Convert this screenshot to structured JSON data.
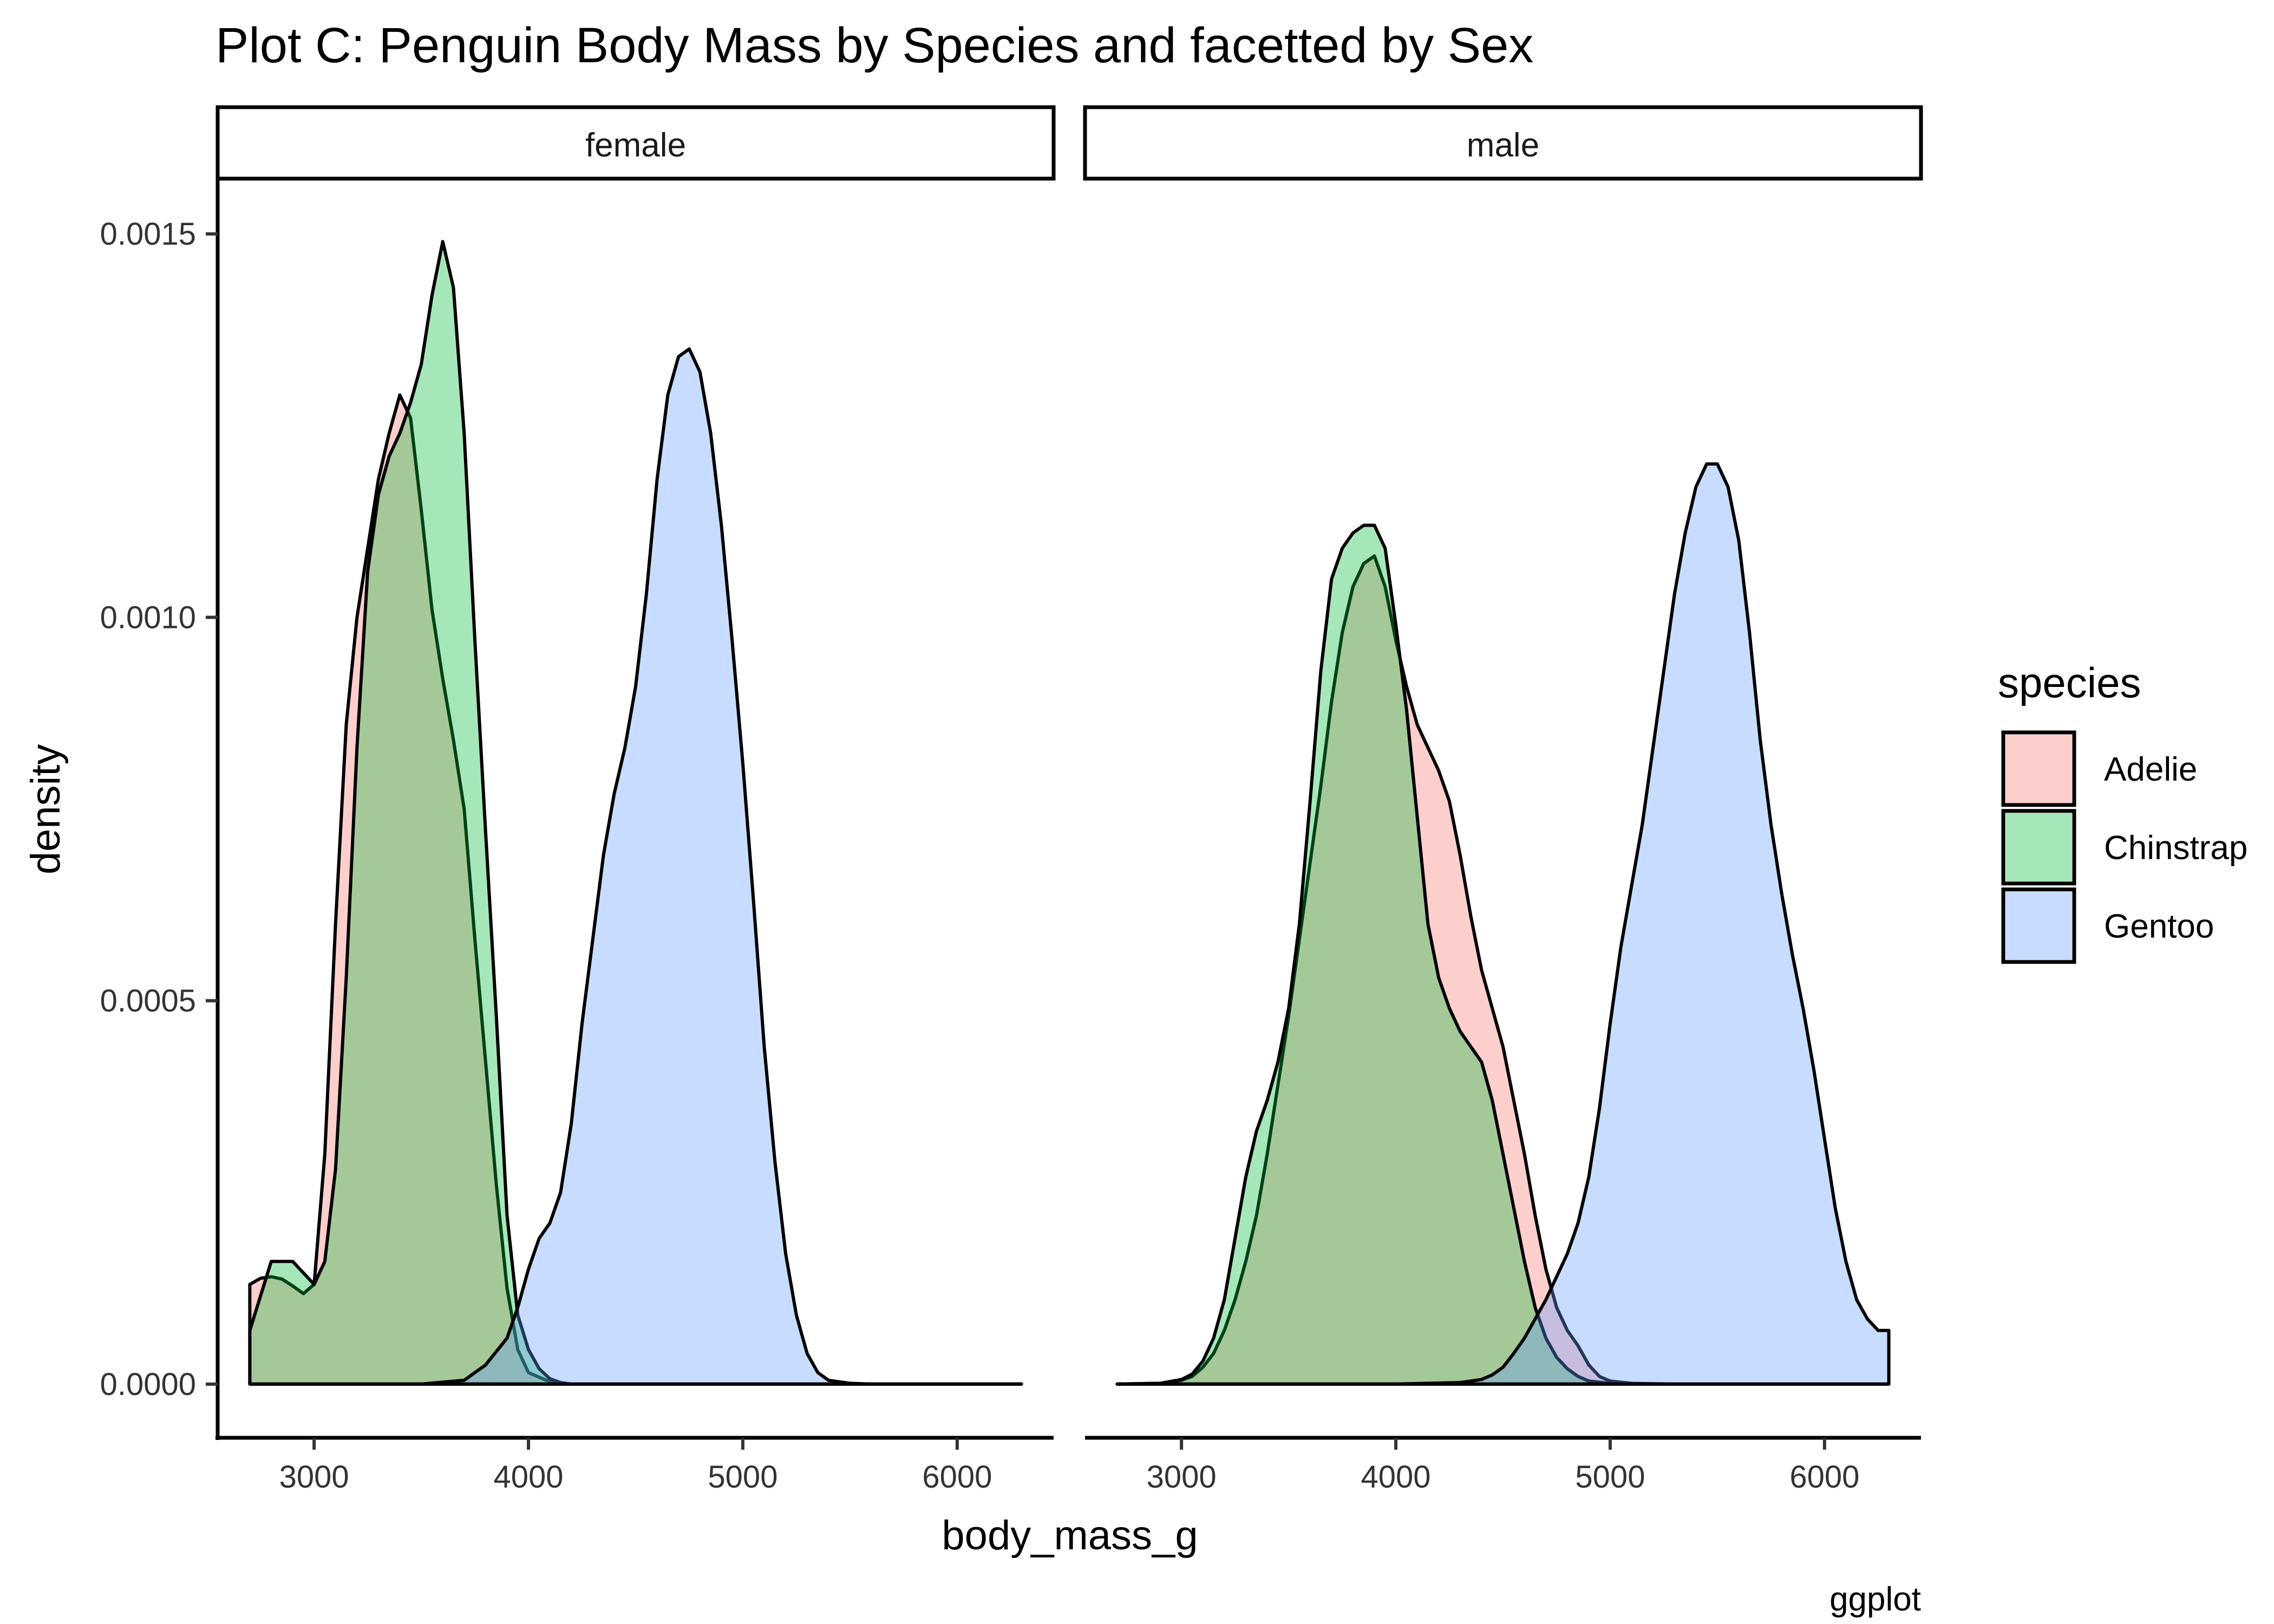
{
  "chart_data": {
    "type": "area",
    "title": "Plot C: Penguin Body Mass by Species and facetted by Sex",
    "xlabel": "body_mass_g",
    "ylabel": "density",
    "caption": "ggplot",
    "xlim": [
      2550,
      6450
    ],
    "ylim": [
      -7e-05,
      0.00157
    ],
    "x_ticks": [
      3000,
      4000,
      5000,
      6000
    ],
    "x_tick_labels": [
      "3000",
      "4000",
      "5000",
      "6000"
    ],
    "y_ticks": [
      0.0,
      0.0005,
      0.001,
      0.0015
    ],
    "y_tick_labels": [
      "0.0000",
      "0.0005",
      "0.0010",
      "0.0015"
    ],
    "grid": false,
    "legend": {
      "title": "species",
      "position": "right",
      "items": [
        "Adelie",
        "Chinstrap",
        "Gentoo"
      ]
    },
    "colors": {
      "Adelie": "#F8766D",
      "Chinstrap": "#00BA38",
      "Gentoo": "#619CFF"
    },
    "fill_opacity": 0.35,
    "facets": [
      {
        "label": "female",
        "series": [
          {
            "name": "Adelie",
            "x": [
              2700,
              2750,
              2800,
              2850,
              2900,
              2950,
              3000,
              3050,
              3100,
              3150,
              3200,
              3250,
              3300,
              3350,
              3400,
              3450,
              3500,
              3550,
              3600,
              3650,
              3700,
              3750,
              3800,
              3850,
              3900,
              3950,
              4000,
              4100,
              4200,
              4300,
              4500,
              5000,
              5500,
              6000,
              6300
            ],
            "values": [
              0.00013,
              0.000138,
              0.00014,
              0.000137,
              0.000128,
              0.000118,
              0.00013,
              0.0003,
              0.0006,
              0.00086,
              0.001,
              0.00109,
              0.00118,
              0.00124,
              0.00129,
              0.00126,
              0.00114,
              0.00101,
              0.00092,
              0.00084,
              0.00075,
              0.00058,
              0.00042,
              0.00026,
              0.000125,
              4.5e-05,
              1.5e-05,
              3e-06,
              0,
              0,
              0,
              0,
              0,
              0,
              0
            ]
          },
          {
            "name": "Chinstrap",
            "x": [
              2700,
              2800,
              2900,
              3000,
              3050,
              3100,
              3150,
              3200,
              3250,
              3300,
              3350,
              3400,
              3450,
              3500,
              3550,
              3600,
              3650,
              3700,
              3750,
              3800,
              3850,
              3900,
              3950,
              4000,
              4050,
              4100,
              4150,
              4200,
              4300,
              4500,
              5000,
              5500,
              6000,
              6300
            ],
            "values": [
              7e-05,
              0.00016,
              0.00016,
              0.00013,
              0.00016,
              0.00028,
              0.00053,
              0.00083,
              0.00106,
              0.00116,
              0.00121,
              0.00124,
              0.00128,
              0.00133,
              0.00142,
              0.00149,
              0.00143,
              0.00124,
              0.00097,
              0.00072,
              0.00048,
              0.00022,
              9e-05,
              4.5e-05,
              2e-05,
              7e-06,
              2e-06,
              0,
              0,
              0,
              0,
              0,
              0,
              0
            ]
          },
          {
            "name": "Gentoo",
            "x": [
              2700,
              3000,
              3500,
              3700,
              3800,
              3900,
              3950,
              4000,
              4050,
              4100,
              4150,
              4200,
              4250,
              4300,
              4350,
              4400,
              4450,
              4500,
              4550,
              4600,
              4650,
              4700,
              4750,
              4800,
              4850,
              4900,
              4950,
              5000,
              5050,
              5100,
              5150,
              5200,
              5250,
              5300,
              5350,
              5400,
              5500,
              5600,
              6000,
              6300
            ],
            "values": [
              0,
              0,
              0,
              5e-06,
              2.5e-05,
              6e-05,
              0.0001,
              0.00015,
              0.00019,
              0.00021,
              0.00025,
              0.00034,
              0.00047,
              0.00058,
              0.00069,
              0.00077,
              0.00083,
              0.00091,
              0.00103,
              0.00118,
              0.00129,
              0.00134,
              0.00135,
              0.00132,
              0.00124,
              0.00112,
              0.00097,
              0.00081,
              0.00063,
              0.00044,
              0.00029,
              0.00017,
              9e-05,
              4e-05,
              1.5e-05,
              5e-06,
              1e-06,
              0,
              0,
              0
            ]
          }
        ]
      },
      {
        "label": "male",
        "series": [
          {
            "name": "Adelie",
            "x": [
              2700,
              2900,
              3000,
              3050,
              3100,
              3150,
              3200,
              3250,
              3300,
              3350,
              3400,
              3450,
              3500,
              3550,
              3600,
              3650,
              3700,
              3750,
              3800,
              3850,
              3900,
              3950,
              4000,
              4050,
              4100,
              4150,
              4200,
              4250,
              4300,
              4350,
              4400,
              4450,
              4500,
              4550,
              4600,
              4650,
              4700,
              4750,
              4800,
              4850,
              4900,
              4950,
              5000,
              5100,
              5300,
              6300
            ],
            "values": [
              0,
              1e-06,
              5e-06,
              1e-05,
              2.2e-05,
              4e-05,
              7e-05,
              0.00011,
              0.00016,
              0.00022,
              0.0003,
              0.00039,
              0.00048,
              0.00058,
              0.00068,
              0.00078,
              0.00089,
              0.00098,
              0.00104,
              0.00107,
              0.00108,
              0.00104,
              0.00097,
              0.00091,
              0.00086,
              0.00083,
              0.0008,
              0.00076,
              0.00069,
              0.00061,
              0.00054,
              0.00049,
              0.00044,
              0.00037,
              0.0003,
              0.00022,
              0.00015,
              0.0001,
              7e-05,
              5e-05,
              2.5e-05,
              1e-05,
              4e-06,
              1e-06,
              0,
              0
            ]
          },
          {
            "name": "Chinstrap",
            "x": [
              2700,
              2900,
              3000,
              3050,
              3100,
              3150,
              3200,
              3250,
              3300,
              3350,
              3400,
              3450,
              3500,
              3550,
              3600,
              3650,
              3700,
              3750,
              3800,
              3850,
              3900,
              3950,
              4000,
              4050,
              4100,
              4150,
              4200,
              4250,
              4300,
              4350,
              4400,
              4450,
              4500,
              4550,
              4600,
              4650,
              4700,
              4750,
              4800,
              4850,
              4900,
              5000,
              5100,
              5300,
              6300
            ],
            "values": [
              0,
              1e-06,
              6e-06,
              1.3e-05,
              3e-05,
              6e-05,
              0.00011,
              0.00019,
              0.00027,
              0.00033,
              0.00037,
              0.00042,
              0.00049,
              0.0006,
              0.00076,
              0.00093,
              0.00105,
              0.00109,
              0.00111,
              0.00112,
              0.00112,
              0.00109,
              0.00099,
              0.00088,
              0.00074,
              0.0006,
              0.00053,
              0.00049,
              0.00046,
              0.00044,
              0.00042,
              0.00037,
              0.0003,
              0.00023,
              0.00016,
              0.0001,
              6e-05,
              3.5e-05,
              2e-05,
              1e-05,
              4e-06,
              1e-06,
              0,
              0,
              0
            ]
          },
          {
            "name": "Gentoo",
            "x": [
              2700,
              4000,
              4300,
              4400,
              4450,
              4500,
              4550,
              4600,
              4650,
              4700,
              4750,
              4800,
              4850,
              4900,
              4950,
              5000,
              5050,
              5100,
              5150,
              5200,
              5250,
              5300,
              5350,
              5400,
              5450,
              5500,
              5550,
              5600,
              5650,
              5700,
              5750,
              5800,
              5850,
              5900,
              5950,
              6000,
              6050,
              6100,
              6150,
              6200,
              6250,
              6300
            ],
            "values": [
              0,
              0,
              2e-06,
              6e-06,
              1.2e-05,
              2.2e-05,
              4e-05,
              6e-05,
              8.5e-05,
              0.00011,
              0.00014,
              0.00017,
              0.00021,
              0.00027,
              0.00036,
              0.00047,
              0.00057,
              0.00065,
              0.00073,
              0.00083,
              0.00093,
              0.00103,
              0.00111,
              0.00117,
              0.0012,
              0.0012,
              0.00117,
              0.0011,
              0.00098,
              0.00084,
              0.00073,
              0.00064,
              0.00056,
              0.00049,
              0.00041,
              0.00032,
              0.00023,
              0.00016,
              0.00011,
              8.5e-05,
              7e-05,
              7e-05
            ]
          }
        ]
      }
    ]
  }
}
